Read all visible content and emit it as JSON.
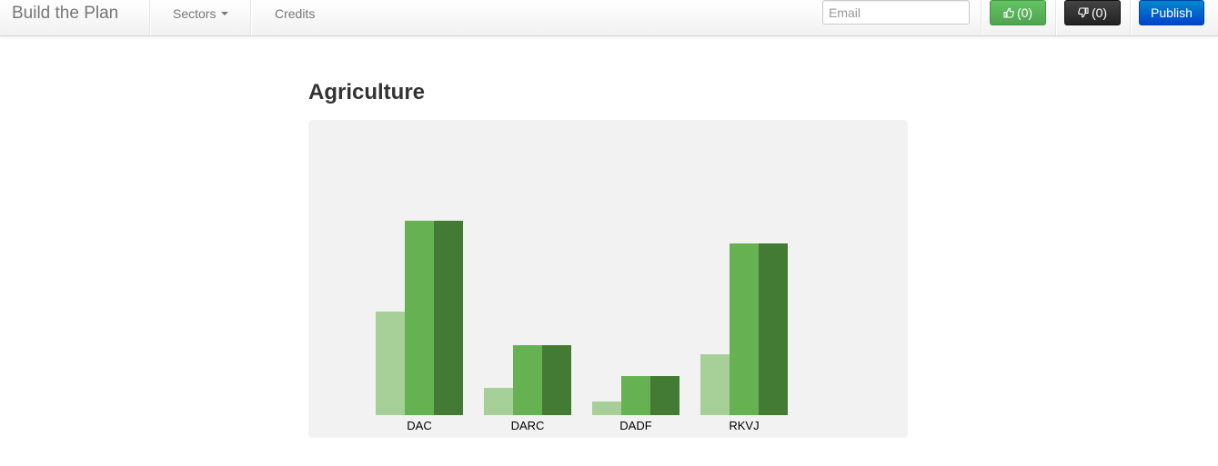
{
  "navbar": {
    "brand": "Build the Plan",
    "menu": [
      {
        "label": "Sectors"
      },
      {
        "label": "Credits"
      }
    ],
    "email_placeholder": "Email",
    "email_value": "",
    "like_label": "(0)",
    "dislike_label": "(0)",
    "publish_label": "Publish"
  },
  "colors": {
    "light_green": "#a6d098",
    "mid_green": "#66b152",
    "dark_green": "#437a34",
    "panel_bg": "#f2f2f2"
  },
  "icons": {
    "like": "thumbs-up-icon",
    "dislike": "thumbs-down-icon"
  },
  "main": {
    "title": "Agriculture"
  },
  "chart_data": {
    "type": "bar",
    "title": "",
    "xlabel": "",
    "ylabel": "",
    "categories": [
      "DAC",
      "DARC",
      "DADF",
      "RKVJ"
    ],
    "series": [
      {
        "values": [
          114,
          30,
          15,
          67
        ]
      },
      {
        "values": [
          214,
          77,
          43,
          189
        ]
      },
      {
        "values": [
          214,
          77,
          43,
          189
        ]
      }
    ],
    "ylim": [
      0,
      300
    ],
    "grid": false,
    "legend": "none"
  }
}
